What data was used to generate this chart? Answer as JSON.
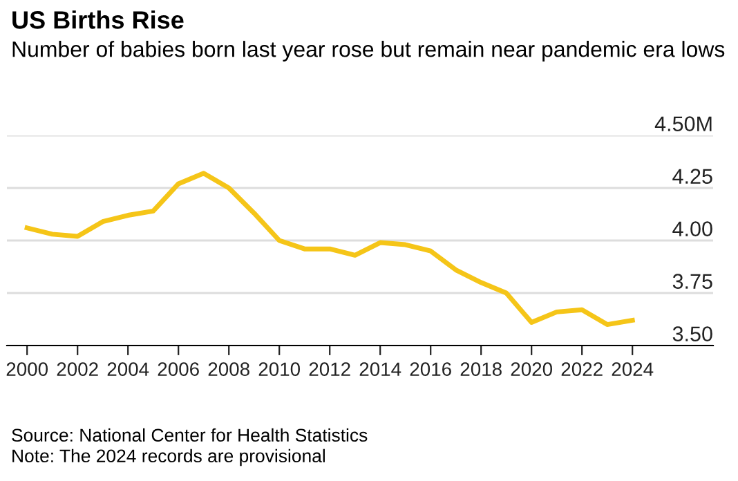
{
  "chart_data": {
    "type": "line",
    "title": "US Births Rise",
    "subtitle": "Number of babies born last year rose but remain near pandemic era lows",
    "x": [
      2000,
      2001,
      2002,
      2003,
      2004,
      2005,
      2006,
      2007,
      2008,
      2009,
      2010,
      2011,
      2012,
      2013,
      2014,
      2015,
      2016,
      2017,
      2018,
      2019,
      2020,
      2021,
      2022,
      2023,
      2024
    ],
    "series": [
      {
        "color": "#f5c518",
        "values": [
          4.06,
          4.03,
          4.02,
          4.09,
          4.12,
          4.14,
          4.27,
          4.32,
          4.25,
          4.13,
          4.0,
          3.96,
          3.96,
          3.93,
          3.99,
          3.98,
          3.95,
          3.86,
          3.8,
          3.75,
          3.61,
          3.66,
          3.67,
          3.6,
          3.62
        ]
      }
    ],
    "xlim": [
      1999.2,
      2027.2
    ],
    "xticks": [
      2000,
      2002,
      2004,
      2006,
      2008,
      2010,
      2012,
      2014,
      2016,
      2018,
      2020,
      2022,
      2024
    ],
    "ylim": [
      3.5,
      4.5
    ],
    "yticks": [
      {
        "value": 3.5,
        "label": "3.50"
      },
      {
        "value": 3.75,
        "label": "3.75"
      },
      {
        "value": 4.0,
        "label": "4.00"
      },
      {
        "value": 4.25,
        "label": "4.25"
      },
      {
        "value": 4.5,
        "label": "4.50M"
      }
    ],
    "grid": "y",
    "line_style": "solid",
    "annotations": [
      "Source: National Center for Health Statistics",
      "Note: The 2024 records are provisional"
    ]
  }
}
